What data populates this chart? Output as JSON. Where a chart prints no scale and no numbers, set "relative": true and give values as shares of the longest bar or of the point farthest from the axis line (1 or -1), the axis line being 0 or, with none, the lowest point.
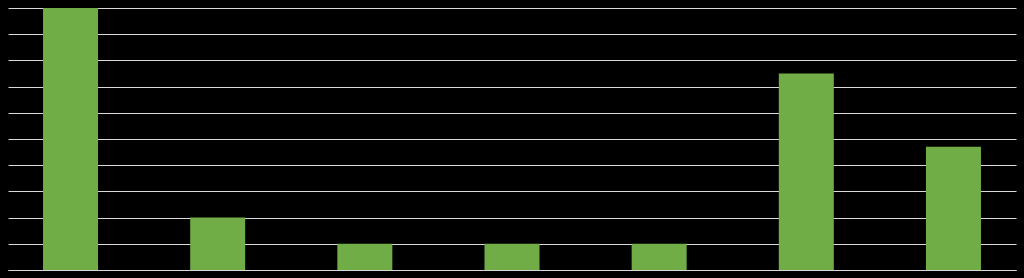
{
  "chart_data": {
    "type": "bar",
    "relative": true,
    "grid": "y",
    "categories": [
      null,
      null,
      null,
      null,
      null,
      null,
      null
    ],
    "series": [
      {
        "color": "#70ad47",
        "values": [
          1,
          0.2,
          0.1,
          0.1,
          0.1,
          0.75,
          0.47
        ]
      }
    ]
  }
}
